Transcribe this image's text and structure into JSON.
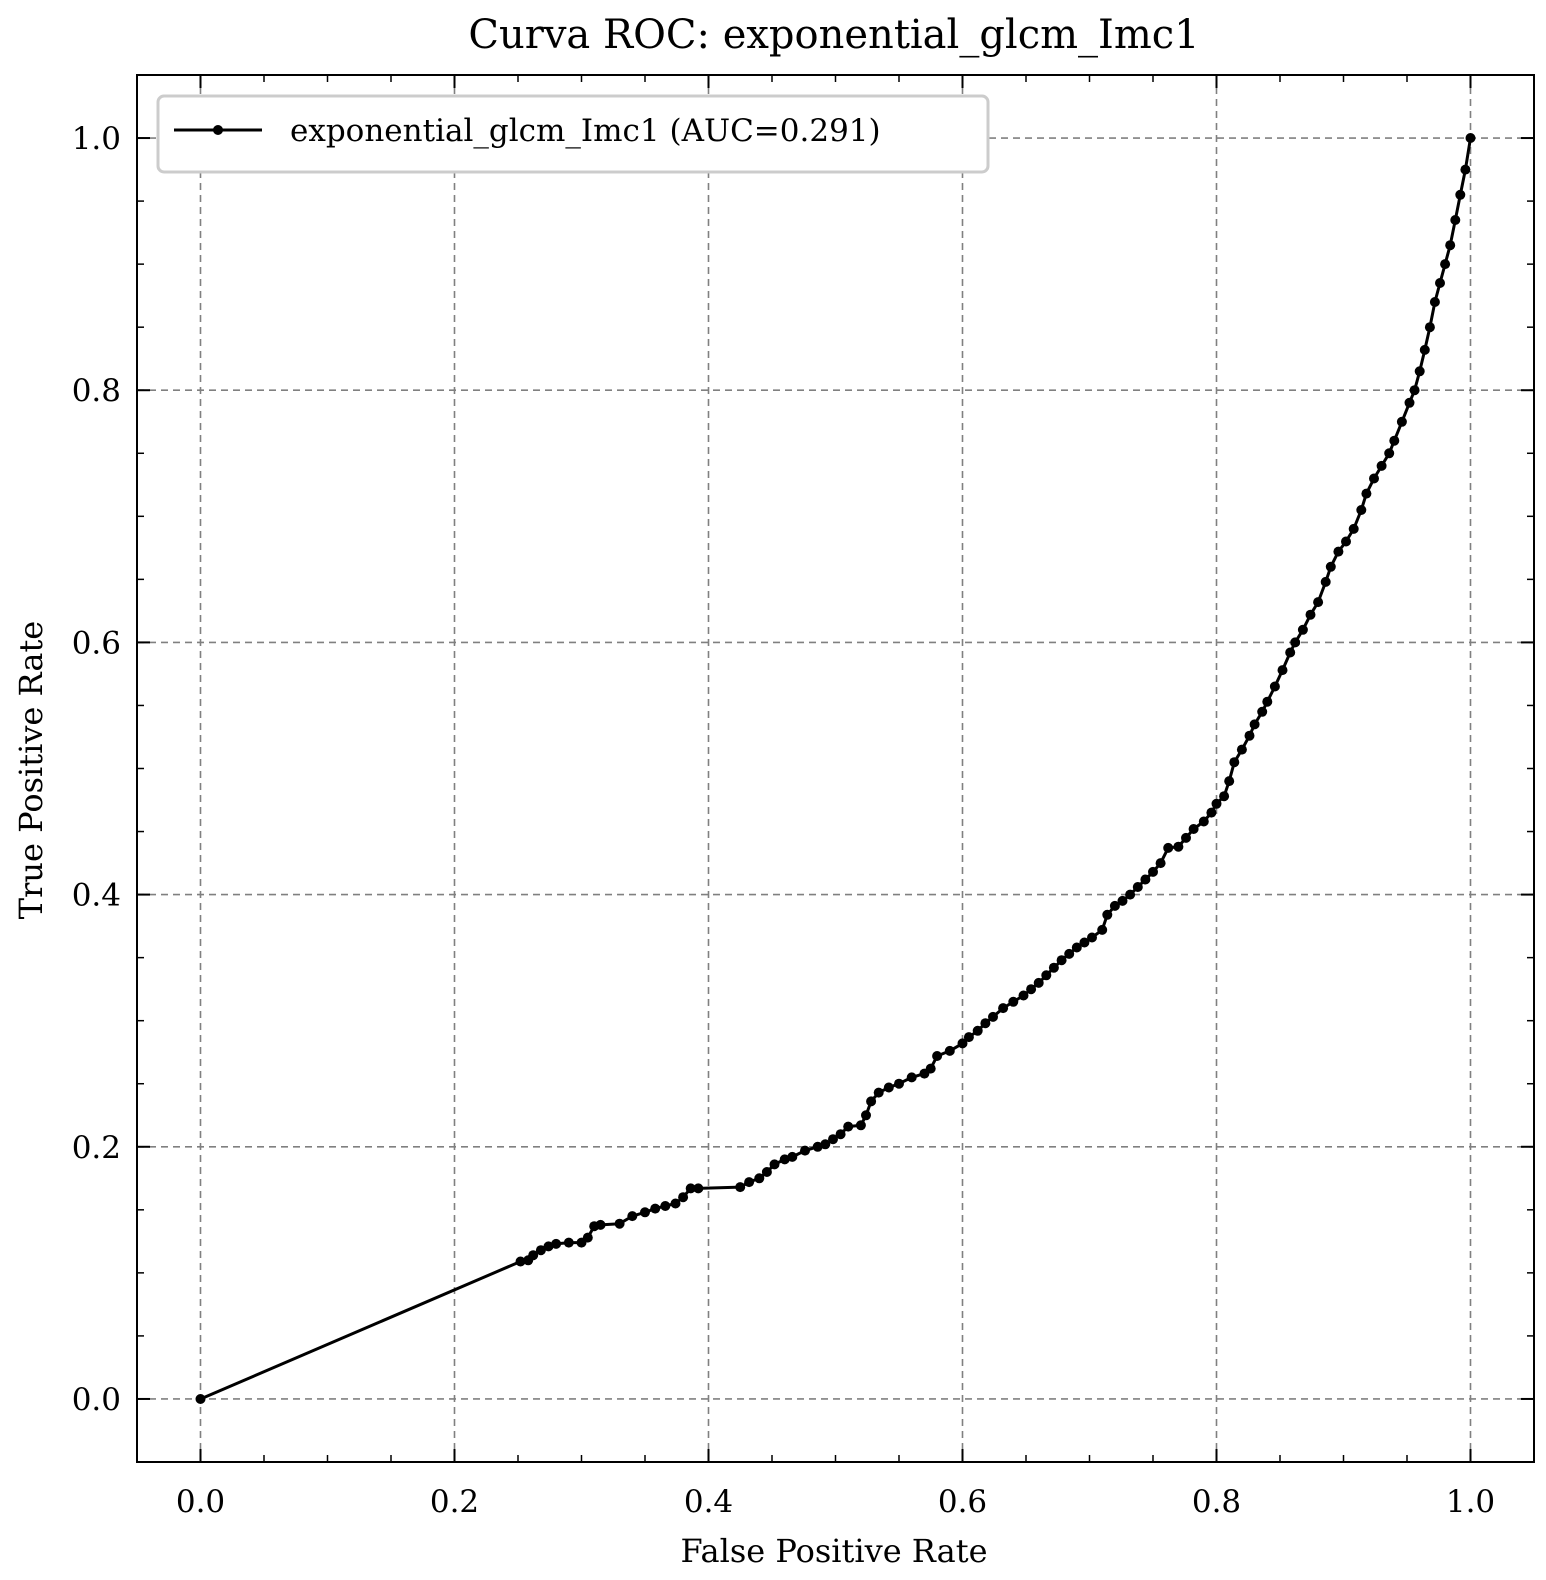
{
  "chart_data": {
    "type": "line",
    "title": "Curva ROC: exponential_glcm_Imc1",
    "xlabel": "False Positive Rate",
    "ylabel": "True Positive Rate",
    "xlim": [
      -0.05,
      1.05
    ],
    "ylim": [
      -0.05,
      1.05
    ],
    "xticks": [
      "0.0",
      "0.2",
      "0.4",
      "0.6",
      "0.8",
      "1.0"
    ],
    "yticks": [
      "0.0",
      "0.2",
      "0.4",
      "0.6",
      "0.8",
      "1.0"
    ],
    "grid": true,
    "legend_position": "top-left",
    "line_color": "#000000",
    "series": [
      {
        "name": "exponential_glcm_Imc1 (AUC=0.291)",
        "marker": "dot",
        "x": [
          0.0,
          0.252,
          0.258,
          0.262,
          0.268,
          0.274,
          0.28,
          0.29,
          0.3,
          0.305,
          0.31,
          0.315,
          0.33,
          0.34,
          0.35,
          0.358,
          0.366,
          0.374,
          0.38,
          0.386,
          0.392,
          0.425,
          0.432,
          0.44,
          0.446,
          0.452,
          0.46,
          0.466,
          0.476,
          0.486,
          0.492,
          0.498,
          0.504,
          0.51,
          0.52,
          0.524,
          0.528,
          0.534,
          0.542,
          0.55,
          0.56,
          0.57,
          0.575,
          0.58,
          0.59,
          0.6,
          0.605,
          0.612,
          0.618,
          0.624,
          0.632,
          0.64,
          0.648,
          0.654,
          0.66,
          0.666,
          0.672,
          0.678,
          0.684,
          0.69,
          0.696,
          0.702,
          0.71,
          0.714,
          0.72,
          0.726,
          0.732,
          0.738,
          0.744,
          0.75,
          0.756,
          0.762,
          0.77,
          0.776,
          0.782,
          0.79,
          0.796,
          0.8,
          0.806,
          0.81,
          0.814,
          0.82,
          0.826,
          0.83,
          0.836,
          0.84,
          0.846,
          0.852,
          0.858,
          0.862,
          0.868,
          0.874,
          0.88,
          0.886,
          0.89,
          0.896,
          0.902,
          0.908,
          0.914,
          0.918,
          0.924,
          0.93,
          0.936,
          0.94,
          0.946,
          0.952,
          0.956,
          0.96,
          0.964,
          0.968,
          0.972,
          0.976,
          0.98,
          0.984,
          0.988,
          0.992,
          0.996,
          1.0
        ],
        "y": [
          0.0,
          0.109,
          0.11,
          0.114,
          0.118,
          0.121,
          0.123,
          0.124,
          0.124,
          0.128,
          0.137,
          0.138,
          0.139,
          0.145,
          0.148,
          0.151,
          0.153,
          0.155,
          0.16,
          0.167,
          0.167,
          0.168,
          0.172,
          0.175,
          0.18,
          0.186,
          0.19,
          0.192,
          0.197,
          0.2,
          0.202,
          0.206,
          0.21,
          0.216,
          0.217,
          0.225,
          0.236,
          0.243,
          0.247,
          0.25,
          0.255,
          0.258,
          0.262,
          0.272,
          0.276,
          0.282,
          0.287,
          0.292,
          0.298,
          0.303,
          0.31,
          0.315,
          0.32,
          0.325,
          0.33,
          0.336,
          0.342,
          0.348,
          0.353,
          0.358,
          0.362,
          0.366,
          0.372,
          0.384,
          0.391,
          0.395,
          0.4,
          0.406,
          0.412,
          0.418,
          0.425,
          0.437,
          0.438,
          0.445,
          0.452,
          0.458,
          0.465,
          0.472,
          0.478,
          0.49,
          0.505,
          0.515,
          0.526,
          0.535,
          0.545,
          0.553,
          0.565,
          0.578,
          0.592,
          0.6,
          0.61,
          0.622,
          0.632,
          0.648,
          0.66,
          0.672,
          0.68,
          0.69,
          0.705,
          0.718,
          0.73,
          0.74,
          0.75,
          0.76,
          0.775,
          0.79,
          0.8,
          0.815,
          0.832,
          0.85,
          0.87,
          0.885,
          0.9,
          0.915,
          0.935,
          0.955,
          0.975,
          1.0
        ]
      }
    ]
  }
}
